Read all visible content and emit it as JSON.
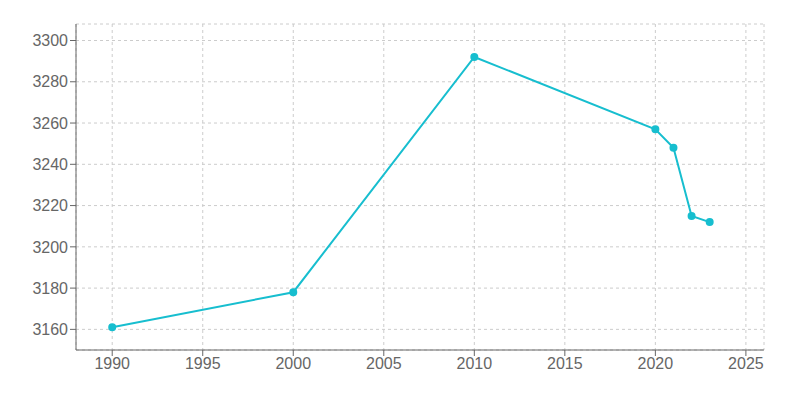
{
  "chart_data": {
    "type": "line",
    "x": [
      1990,
      2000,
      2010,
      2020,
      2021,
      2022,
      2023
    ],
    "values": [
      3161,
      3178,
      3292,
      3257,
      3248,
      3215,
      3212
    ],
    "color": "#17BECF",
    "marker": "circle",
    "xlim": [
      1988,
      2026
    ],
    "ylim": [
      3150,
      3308
    ],
    "xticks": [
      1990,
      1995,
      2000,
      2005,
      2010,
      2015,
      2020,
      2025
    ],
    "yticks": [
      3160,
      3180,
      3200,
      3220,
      3240,
      3260,
      3280,
      3300
    ],
    "grid": true
  }
}
